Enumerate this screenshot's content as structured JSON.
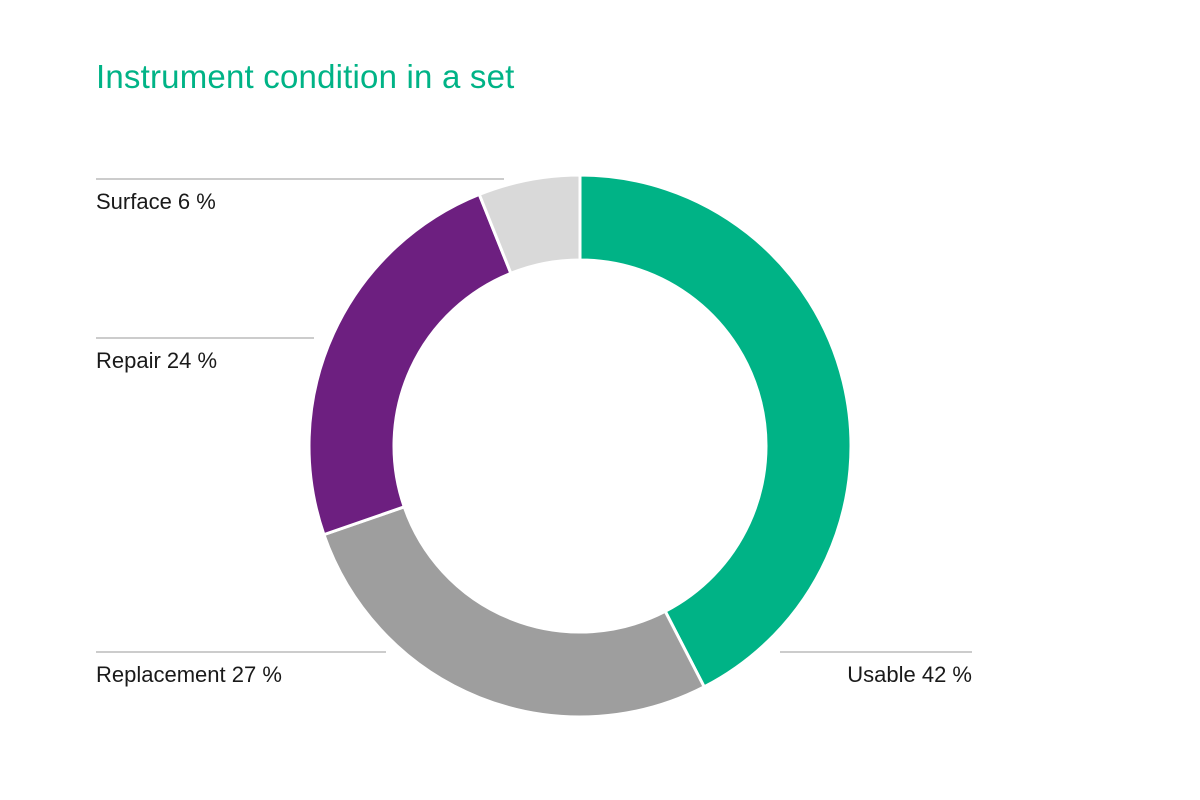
{
  "chart_data": {
    "type": "pie",
    "variant": "donut",
    "title": "Instrument condition in a set",
    "unit": "%",
    "slices": [
      {
        "label": "Usable",
        "value": 42,
        "display": "Usable 42 %",
        "color": "#00b386"
      },
      {
        "label": "Replacement",
        "value": 27,
        "display": "Replacement 27 %",
        "color": "#9e9e9e"
      },
      {
        "label": "Repair",
        "value": 24,
        "display": "Repair 24 %",
        "color": "#6d1f80"
      },
      {
        "label": "Surface",
        "value": 6,
        "display": "Surface 6 %",
        "color": "#d9d9d9"
      }
    ],
    "legend": "none",
    "label_placement": "outside with leader lines"
  },
  "colors": {
    "title": "#00b386",
    "leader_line": "#9a9a9a",
    "slice_separator": "#ffffff"
  }
}
